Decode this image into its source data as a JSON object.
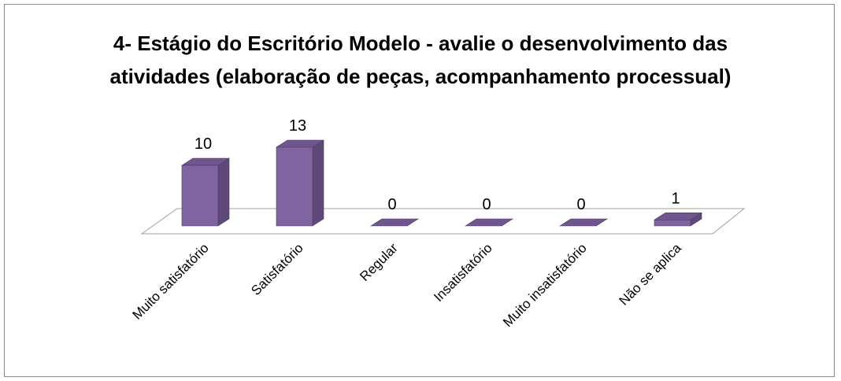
{
  "chart_data": {
    "type": "bar3d",
    "title": "4- Estágio do Escritório Modelo - avalie o desenvolvimento das atividades (elaboração de peças, acompanhamento processual)",
    "categories": [
      "Muito satisfatório",
      "Satisfatório",
      "Regular",
      "Insatisfatório",
      "Muito insatisfatório",
      "Não se aplica"
    ],
    "values": [
      10,
      13,
      0,
      0,
      0,
      1
    ],
    "color": "#8064a2"
  }
}
